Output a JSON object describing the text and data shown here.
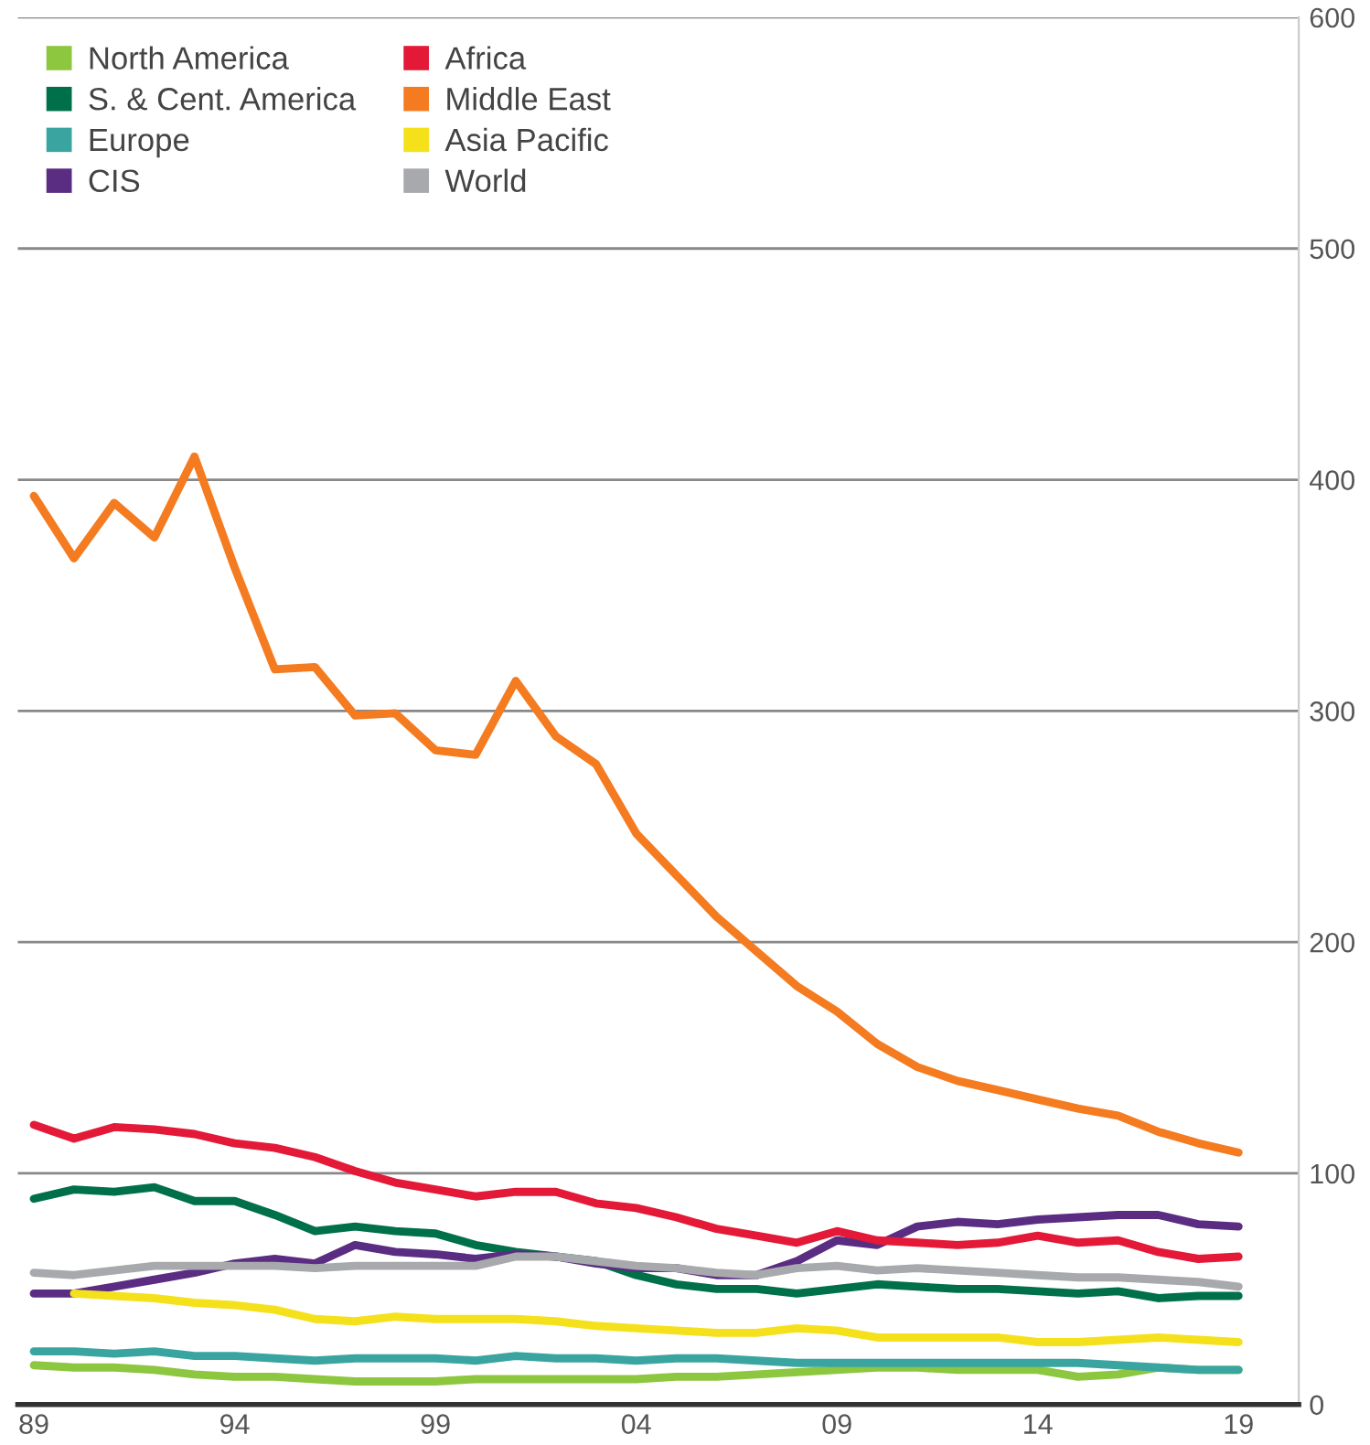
{
  "chart_data": {
    "type": "line",
    "x": [
      1989,
      1990,
      1991,
      1992,
      1993,
      1994,
      1995,
      1996,
      1997,
      1998,
      1999,
      2000,
      2001,
      2002,
      2003,
      2004,
      2005,
      2006,
      2007,
      2008,
      2009,
      2010,
      2011,
      2012,
      2013,
      2014,
      2015,
      2016,
      2017,
      2018,
      2019
    ],
    "series": [
      {
        "name": "North America",
        "color": "#8dc63f",
        "values": [
          17,
          16,
          16,
          15,
          13,
          12,
          12,
          11,
          10,
          10,
          10,
          11,
          11,
          11,
          11,
          11,
          12,
          12,
          13,
          14,
          15,
          16,
          16,
          15,
          15,
          15,
          12,
          13,
          16,
          15,
          15
        ]
      },
      {
        "name": "S. & Cent. America",
        "color": "#00704a",
        "values": [
          89,
          93,
          92,
          94,
          88,
          88,
          82,
          75,
          77,
          75,
          74,
          69,
          66,
          64,
          62,
          56,
          52,
          50,
          50,
          48,
          50,
          52,
          51,
          50,
          50,
          49,
          48,
          49,
          46,
          47,
          47
        ]
      },
      {
        "name": "Europe",
        "color": "#3aa5a0",
        "values": [
          23,
          23,
          22,
          23,
          21,
          21,
          20,
          19,
          20,
          20,
          20,
          19,
          21,
          20,
          20,
          19,
          20,
          20,
          19,
          18,
          18,
          18,
          18,
          18,
          18,
          18,
          18,
          17,
          16,
          15,
          15
        ]
      },
      {
        "name": "CIS",
        "color": "#5a2d82",
        "values": [
          48,
          48,
          51,
          54,
          57,
          61,
          63,
          61,
          69,
          66,
          65,
          63,
          65,
          64,
          61,
          59,
          59,
          56,
          56,
          62,
          71,
          69,
          77,
          79,
          78,
          80,
          81,
          82,
          82,
          78,
          77
        ]
      },
      {
        "name": "Africa",
        "color": "#e31937",
        "values": [
          121,
          115,
          120,
          119,
          117,
          113,
          111,
          107,
          101,
          96,
          93,
          90,
          92,
          92,
          87,
          85,
          81,
          76,
          73,
          70,
          75,
          71,
          70,
          69,
          70,
          73,
          70,
          71,
          66,
          63,
          64
        ]
      },
      {
        "name": "Middle East",
        "color": "#f47b20",
        "values": [
          393,
          366,
          390,
          375,
          410,
          362,
          318,
          319,
          298,
          299,
          283,
          281,
          313,
          289,
          277,
          247,
          229,
          211,
          196,
          181,
          170,
          156,
          146,
          140,
          136,
          132,
          128,
          125,
          118,
          113,
          109
        ]
      },
      {
        "name": "Asia Pacific",
        "color": "#f5e11b",
        "values": [
          null,
          48,
          47,
          46,
          44,
          43,
          41,
          37,
          36,
          38,
          37,
          37,
          37,
          36,
          34,
          33,
          32,
          31,
          31,
          33,
          32,
          29,
          29,
          29,
          29,
          27,
          27,
          28,
          29,
          28,
          27
        ]
      },
      {
        "name": "World",
        "color": "#a7a9ac",
        "values": [
          57,
          56,
          58,
          60,
          60,
          60,
          60,
          59,
          60,
          60,
          60,
          60,
          64,
          64,
          62,
          60,
          59,
          57,
          56,
          59,
          60,
          58,
          59,
          58,
          57,
          56,
          55,
          55,
          54,
          53,
          51
        ]
      }
    ],
    "xlim": [
      1988.6,
      2020.5
    ],
    "xticks": [
      {
        "value": 1989,
        "label": "89"
      },
      {
        "value": 1994,
        "label": "94"
      },
      {
        "value": 1999,
        "label": "99"
      },
      {
        "value": 2004,
        "label": "04"
      },
      {
        "value": 2009,
        "label": "09"
      },
      {
        "value": 2014,
        "label": "14"
      },
      {
        "value": 2019,
        "label": "19"
      }
    ],
    "ylim": [
      0,
      600
    ],
    "yticks": [
      0,
      100,
      200,
      300,
      400,
      500,
      600
    ],
    "grid": "y",
    "legend": "top left",
    "marker": "none",
    "line_style": "solid"
  }
}
